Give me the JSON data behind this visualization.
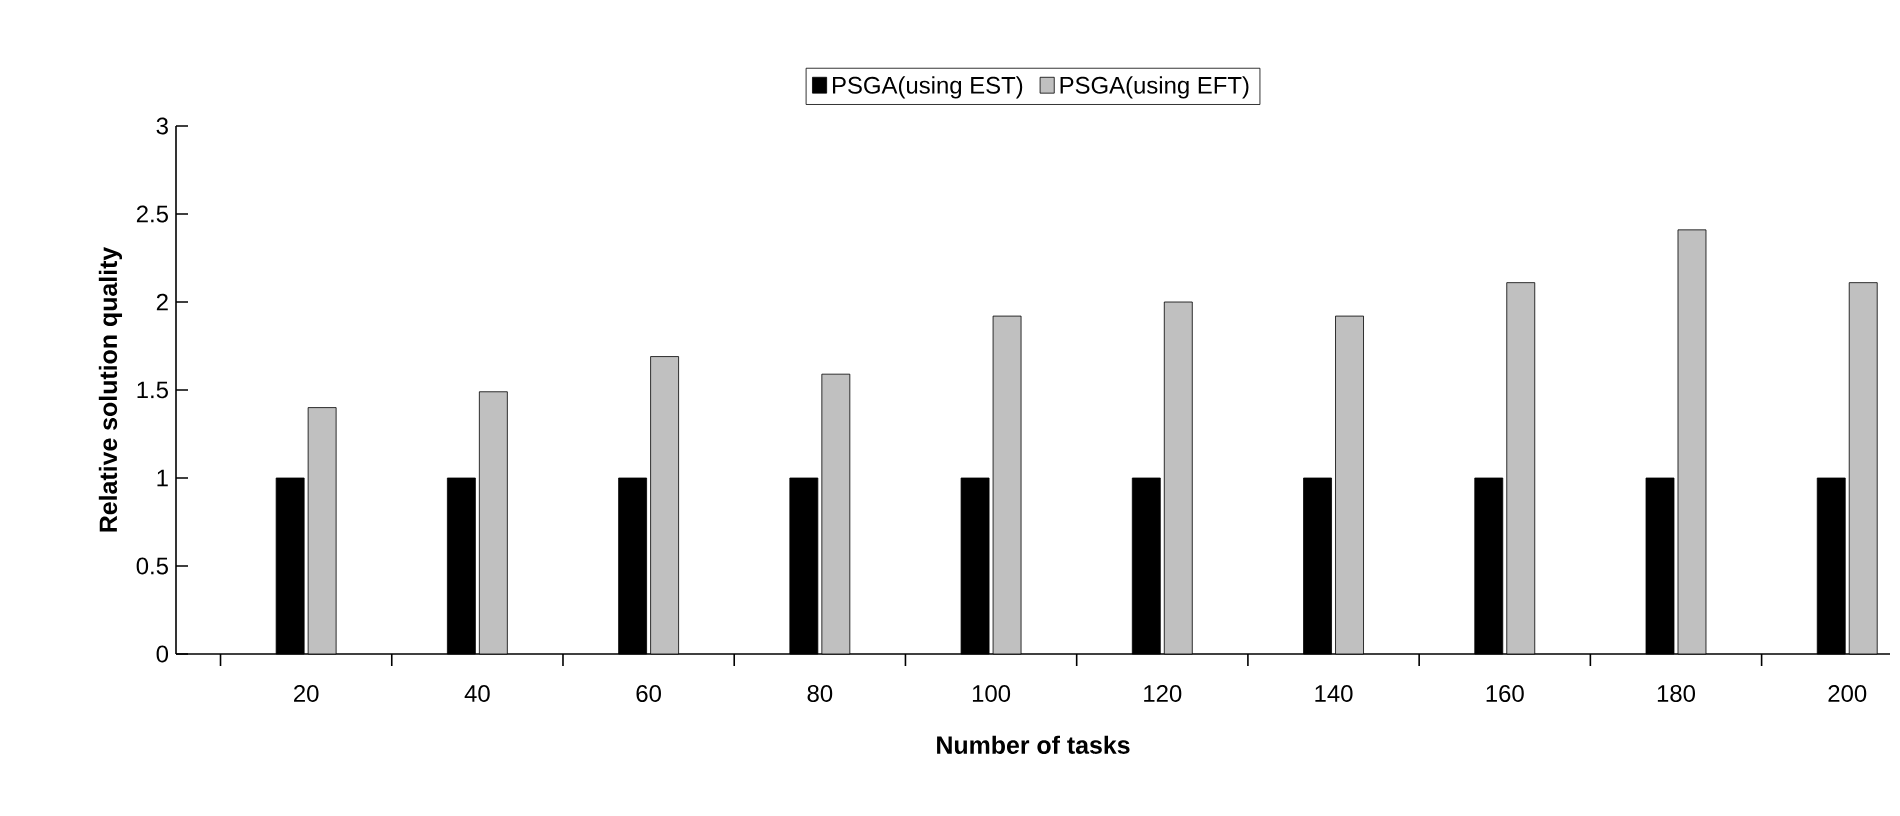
{
  "chart_data": {
    "type": "bar",
    "xlabel": "Number of tasks",
    "ylabel": "Relative solution quality",
    "categories": [
      "20",
      "40",
      "60",
      "80",
      "100",
      "120",
      "140",
      "160",
      "180",
      "200"
    ],
    "series": [
      {
        "name": "PSGA(using EST)",
        "color": "#000000",
        "values": [
          1,
          1,
          1,
          1,
          1,
          1,
          1,
          1,
          1,
          1
        ]
      },
      {
        "name": "PSGA(using EFT)",
        "color": "#c0c0c0",
        "values": [
          1.4,
          1.49,
          1.69,
          1.59,
          1.92,
          2,
          1.92,
          2.11,
          2.41,
          2.11
        ]
      }
    ],
    "ylim": [
      0,
      3
    ],
    "yticks": [
      0,
      0.5,
      1,
      1.5,
      2,
      2.5,
      3
    ],
    "legend": "top",
    "grid": false
  }
}
